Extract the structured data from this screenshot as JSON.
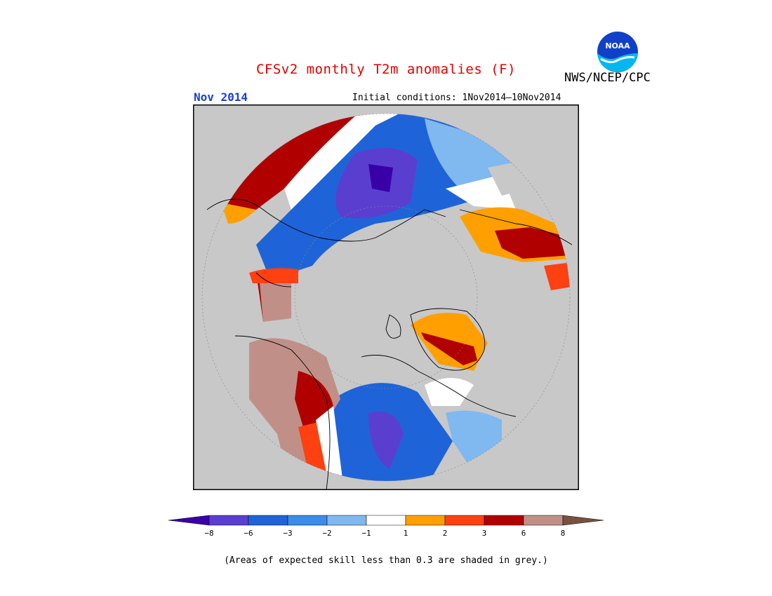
{
  "header": {
    "title": "CFSv2 monthly T2m anomalies (F)",
    "agency": "NWS/NCEP/CPC",
    "month": "Nov 2014",
    "initial_conditions": "Initial conditions: 1Nov2014–10Nov2014",
    "logo_text": "NOAA"
  },
  "legend": {
    "ticks": [
      "−8",
      "−6",
      "−3",
      "−2",
      "−1",
      "1",
      "2",
      "3",
      "6",
      "8"
    ],
    "colors": {
      "lt_m8": "#3a00a8",
      "m8_m6": "#5a3ed0",
      "m6_m3": "#1e64d8",
      "m3_m2": "#3c8ce8",
      "m2_m1": "#80b8f0",
      "m1_1": "#ffffff",
      "c1_2": "#ffa000",
      "c2_3": "#ff4010",
      "c3_6": "#b00000",
      "c6_8": "#c09088",
      "gt_8": "#7a5040"
    }
  },
  "colors": {
    "grey_no_skill": "#c8c8c8",
    "coast": "#000000",
    "title_red": "#e00000",
    "month_blue": "#1a3fd6"
  },
  "footnote": "(Areas of expected skill less than 0.3 are shaded in grey.)"
}
